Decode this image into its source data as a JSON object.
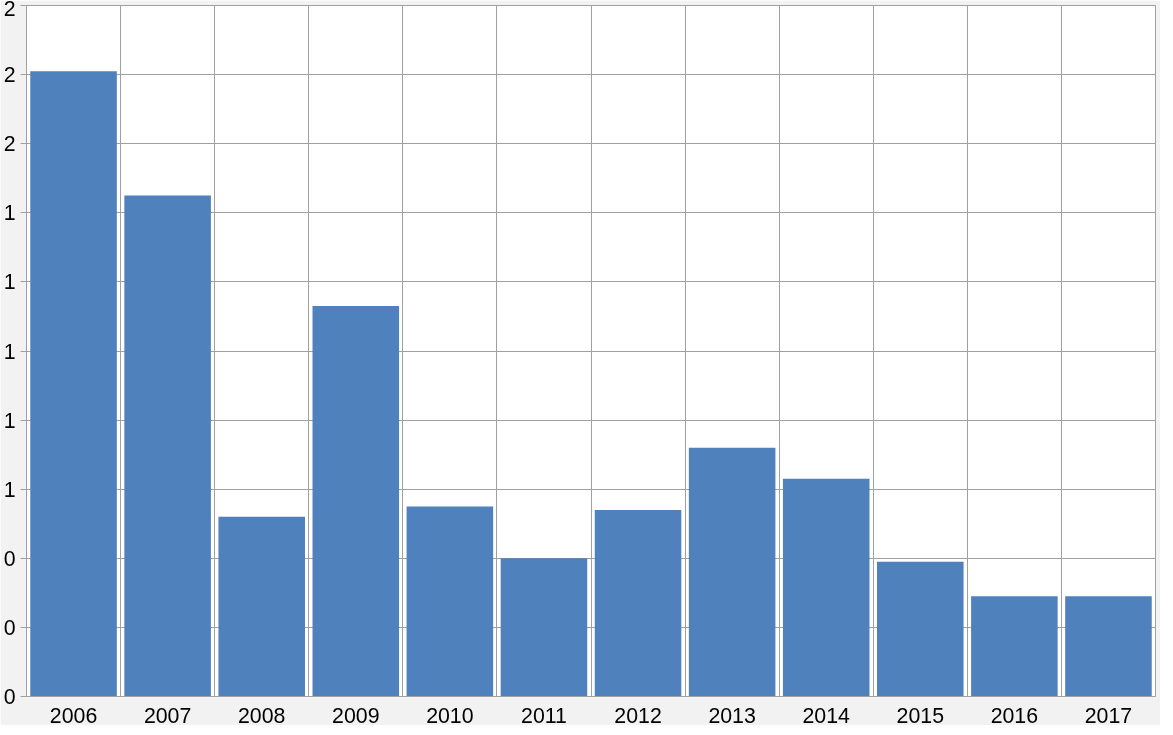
{
  "chart_data": {
    "type": "bar",
    "categories": [
      "2006",
      "2007",
      "2008",
      "2009",
      "2010",
      "2011",
      "2012",
      "2013",
      "2014",
      "2015",
      "2016",
      "2017"
    ],
    "values": [
      1.81,
      1.45,
      0.52,
      1.13,
      0.55,
      0.4,
      0.54,
      0.72,
      0.63,
      0.39,
      0.29,
      0.29
    ],
    "color": "#4f81bd",
    "ylim": [
      0,
      2
    ],
    "yticks": [
      {
        "value": 0,
        "label": "0"
      },
      {
        "value": 0.2,
        "label": "0"
      },
      {
        "value": 0.4,
        "label": "0"
      },
      {
        "value": 0.6,
        "label": "1"
      },
      {
        "value": 0.8,
        "label": "1"
      },
      {
        "value": 1.0,
        "label": "1"
      },
      {
        "value": 1.2,
        "label": "1"
      },
      {
        "value": 1.4,
        "label": "1"
      },
      {
        "value": 1.6,
        "label": "2"
      },
      {
        "value": 1.8,
        "label": "2"
      },
      {
        "value": 2.0,
        "label": "2"
      }
    ],
    "grid": true
  }
}
